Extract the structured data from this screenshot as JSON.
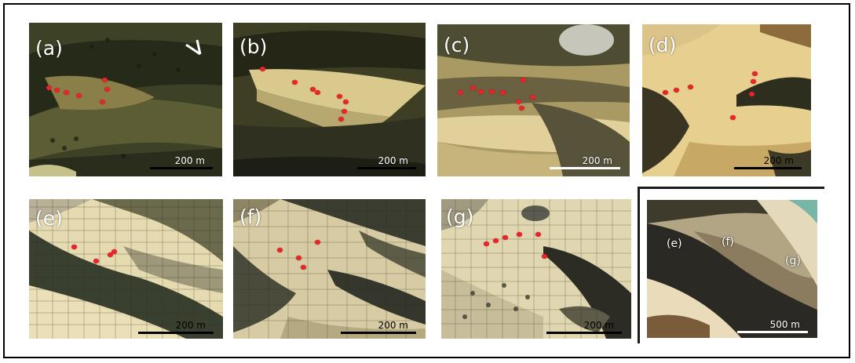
{
  "figure": {
    "panels": [
      {
        "id": "a",
        "label": "(a)",
        "scale": "200 m",
        "north_arrow": true,
        "tones": [
          "#2b2f1c",
          "#4f5530",
          "#6f6b3e"
        ]
      },
      {
        "id": "b",
        "label": "(b)",
        "scale": "200 m",
        "north_arrow": false,
        "tones": [
          "#3a3a22",
          "#8c8450",
          "#d8c98a"
        ]
      },
      {
        "id": "c",
        "label": "(c)",
        "scale": "200 m",
        "north_arrow": false,
        "tones": [
          "#4a4a2e",
          "#b9a56a",
          "#e6d39a"
        ]
      },
      {
        "id": "d",
        "label": "(d)",
        "scale": "200 m",
        "north_arrow": false,
        "tones": [
          "#2c2b1c",
          "#c9b06c",
          "#ecd79c"
        ]
      },
      {
        "id": "e",
        "label": "(e)",
        "scale": "200 m",
        "north_arrow": false,
        "tones": [
          "#2d3326",
          "#7d7a55",
          "#e8dcae"
        ]
      },
      {
        "id": "f",
        "label": "(f)",
        "scale": "200 m",
        "north_arrow": false,
        "tones": [
          "#34352a",
          "#8a8561",
          "#e3d7ad"
        ]
      },
      {
        "id": "g",
        "label": "(g)",
        "scale": "200 m",
        "north_arrow": false,
        "tones": [
          "#2f2f28",
          "#9a9270",
          "#ece0b6"
        ]
      }
    ],
    "overview": {
      "scale": "500 m",
      "sublabels": [
        "(e)",
        "(f)",
        "(g)"
      ],
      "tones": [
        "#2a2a22",
        "#8d8366",
        "#e7dcbc"
      ]
    },
    "marker_color": "#e8262a"
  }
}
